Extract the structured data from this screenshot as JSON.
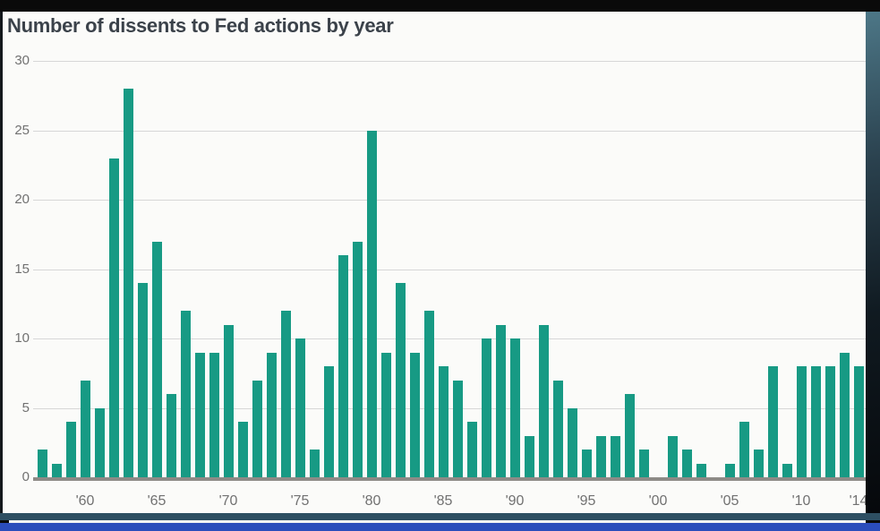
{
  "title": "Number of dissents to Fed actions by year",
  "colors": {
    "bar": "#179a84",
    "title_text": "#3b424a",
    "axis_text": "#717171",
    "gridline": "#d7d7d7",
    "baseline": "#8e8b87",
    "frame": "#0a0a0a",
    "panel_background": "#fbfbf9",
    "bottom_band_slate": "#2e4f62",
    "bottom_band_blue": "#2b4dbb"
  },
  "chart_data": {
    "type": "bar",
    "title": "Number of dissents to Fed actions by year",
    "xlabel": "",
    "ylabel": "",
    "ylim": [
      0,
      30
    ],
    "yticks": [
      0,
      5,
      10,
      15,
      20,
      25,
      30
    ],
    "grid": "horizontal gridlines on, legend none",
    "x": [
      1957,
      1958,
      1959,
      1960,
      1961,
      1962,
      1963,
      1964,
      1965,
      1966,
      1967,
      1968,
      1969,
      1970,
      1971,
      1972,
      1973,
      1974,
      1975,
      1976,
      1977,
      1978,
      1979,
      1980,
      1981,
      1982,
      1983,
      1984,
      1985,
      1986,
      1987,
      1988,
      1989,
      1990,
      1991,
      1992,
      1993,
      1994,
      1995,
      1996,
      1997,
      1998,
      1999,
      2000,
      2001,
      2002,
      2003,
      2004,
      2005,
      2006,
      2007,
      2008,
      2009,
      2010,
      2011,
      2012,
      2013,
      2014
    ],
    "values": [
      2,
      1,
      4,
      7,
      5,
      23,
      28,
      14,
      17,
      6,
      12,
      9,
      9,
      11,
      4,
      7,
      9,
      12,
      10,
      2,
      8,
      16,
      17,
      25,
      9,
      14,
      9,
      12,
      8,
      7,
      4,
      10,
      11,
      10,
      3,
      11,
      7,
      5,
      2,
      3,
      3,
      6,
      2,
      0,
      3,
      2,
      1,
      0,
      1,
      4,
      2,
      8,
      1,
      8,
      8,
      8,
      9,
      8
    ],
    "xtick_labels": [
      {
        "year": 1960,
        "label": "'60"
      },
      {
        "year": 1965,
        "label": "'65"
      },
      {
        "year": 1970,
        "label": "'70"
      },
      {
        "year": 1975,
        "label": "'75"
      },
      {
        "year": 1980,
        "label": "'80"
      },
      {
        "year": 1985,
        "label": "'85"
      },
      {
        "year": 1990,
        "label": "'90"
      },
      {
        "year": 1995,
        "label": "'95"
      },
      {
        "year": 2000,
        "label": "'00"
      },
      {
        "year": 2005,
        "label": "'05"
      },
      {
        "year": 2010,
        "label": "'10"
      },
      {
        "year": 2014,
        "label": "'14"
      }
    ]
  }
}
